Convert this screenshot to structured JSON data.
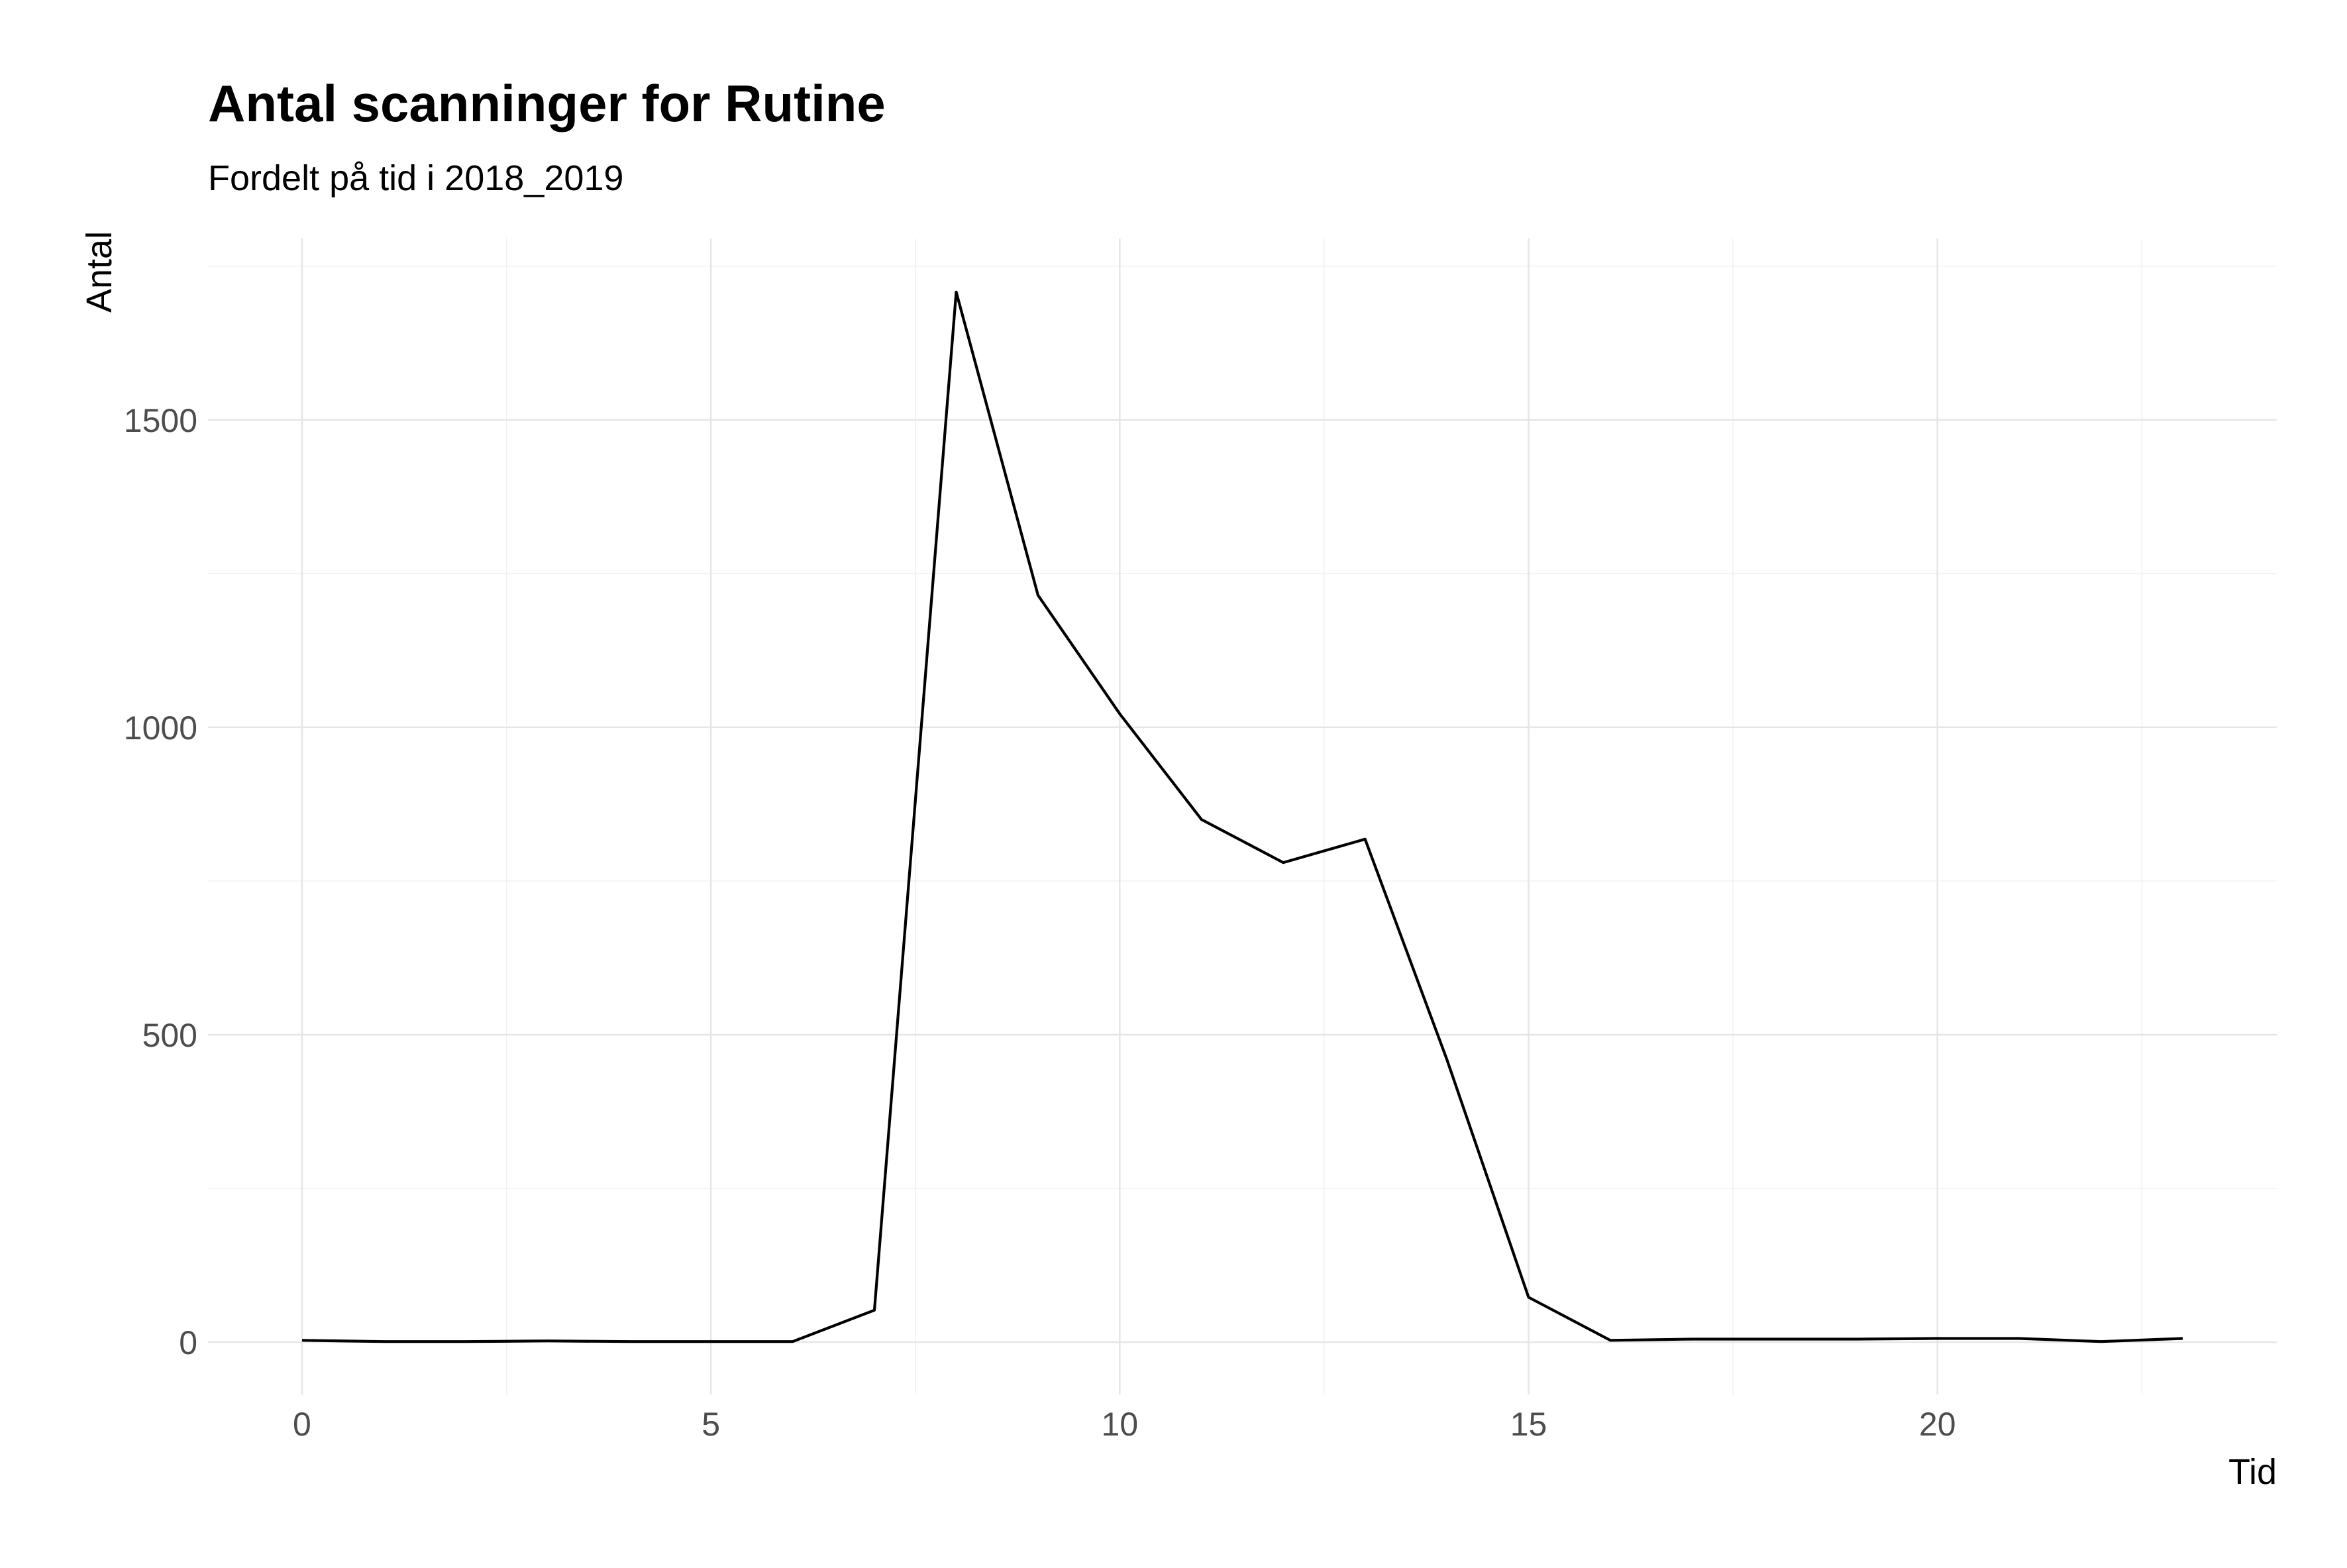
{
  "chart_data": {
    "type": "line",
    "title": "Antal scanninger for Rutine",
    "subtitle": "Fordelt på tid i 2018_2019",
    "xlabel": "Tid",
    "ylabel": "Antal",
    "xlim": [
      -1.15,
      24.15
    ],
    "ylim": [
      -85,
      1795
    ],
    "x_ticks": [
      0,
      5,
      10,
      15,
      20
    ],
    "y_ticks": [
      0,
      500,
      1000,
      1500
    ],
    "x_minor_ticks": [
      2.5,
      7.5,
      12.5,
      17.5,
      22.5
    ],
    "y_minor_ticks": [
      250,
      750,
      1250,
      1750
    ],
    "grid": true,
    "legend": "none",
    "line_color": "#000000",
    "series": [
      {
        "x": [
          0,
          1,
          2,
          3,
          4,
          5,
          6,
          7,
          8,
          9,
          10,
          11,
          12,
          13,
          14,
          15,
          16,
          17,
          18,
          19,
          20,
          21,
          22,
          23
        ],
        "values": [
          3,
          1,
          1,
          2,
          1,
          1,
          1,
          52,
          1708,
          1215,
          1022,
          850,
          780,
          818,
          460,
          73,
          3,
          5,
          5,
          5,
          6,
          6,
          1,
          6
        ]
      }
    ]
  }
}
